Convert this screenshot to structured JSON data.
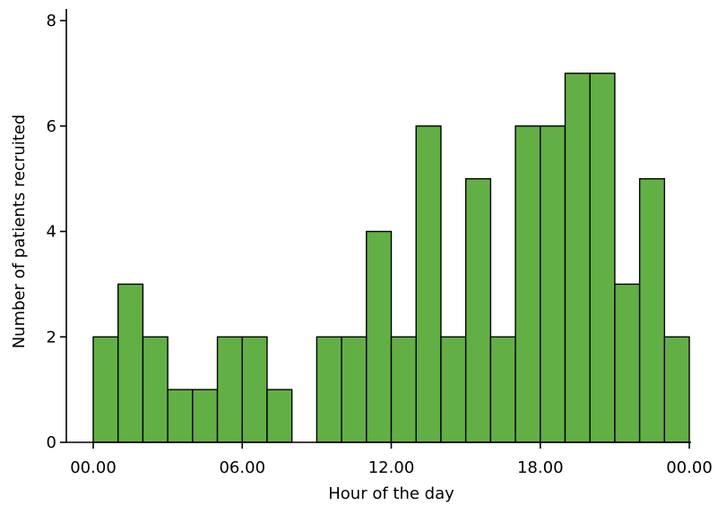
{
  "chart_data": {
    "type": "bar",
    "title": "",
    "xlabel": "Hour of the day",
    "ylabel": "Number of patients recruited",
    "bin_width_hours": 1,
    "x_range_hours": [
      0,
      24
    ],
    "ylim": [
      0,
      8
    ],
    "y_ticks": [
      0,
      2,
      4,
      6,
      8
    ],
    "x_ticks": [
      {
        "hour": 0,
        "label": "00.00"
      },
      {
        "hour": 6,
        "label": "06.00"
      },
      {
        "hour": 12,
        "label": "12.00"
      },
      {
        "hour": 18,
        "label": "18.00"
      },
      {
        "hour": 24,
        "label": "00.00"
      }
    ],
    "bins": [
      {
        "start_hour": 0,
        "value": 2
      },
      {
        "start_hour": 1,
        "value": 3
      },
      {
        "start_hour": 2,
        "value": 2
      },
      {
        "start_hour": 3,
        "value": 1
      },
      {
        "start_hour": 4,
        "value": 1
      },
      {
        "start_hour": 5,
        "value": 2
      },
      {
        "start_hour": 6,
        "value": 2
      },
      {
        "start_hour": 7,
        "value": 1
      },
      {
        "start_hour": 8,
        "value": 0
      },
      {
        "start_hour": 9,
        "value": 2
      },
      {
        "start_hour": 10,
        "value": 2
      },
      {
        "start_hour": 11,
        "value": 4
      },
      {
        "start_hour": 12,
        "value": 2
      },
      {
        "start_hour": 13,
        "value": 6
      },
      {
        "start_hour": 14,
        "value": 2
      },
      {
        "start_hour": 15,
        "value": 5
      },
      {
        "start_hour": 16,
        "value": 2
      },
      {
        "start_hour": 17,
        "value": 6
      },
      {
        "start_hour": 18,
        "value": 6
      },
      {
        "start_hour": 19,
        "value": 7
      },
      {
        "start_hour": 20,
        "value": 7
      },
      {
        "start_hour": 21,
        "value": 3
      },
      {
        "start_hour": 22,
        "value": 5
      },
      {
        "start_hour": 23,
        "value": 2
      }
    ],
    "grid": false,
    "legend": "none",
    "bar_color": "#62b045",
    "edge_color": "#000000"
  }
}
